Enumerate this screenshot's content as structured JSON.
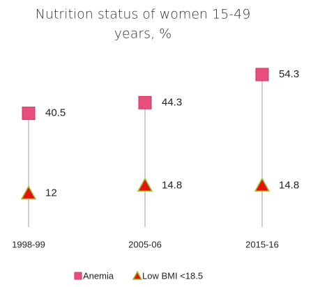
{
  "chart_data": {
    "type": "dot",
    "title": [
      "Nutrition status of women 15-49",
      "years, %"
    ],
    "categories": [
      "1998-99",
      "2005-06",
      "2015-16"
    ],
    "series": [
      {
        "name": "Anemia",
        "color": "#e94f7c",
        "marker": "square",
        "values": [
          40.5,
          44.3,
          54.3
        ]
      },
      {
        "name": "Low BMI <18.5",
        "color": "#e8120c",
        "marker": "triangle",
        "values": [
          12,
          14.8,
          14.8
        ]
      }
    ],
    "legend": "bottom"
  }
}
